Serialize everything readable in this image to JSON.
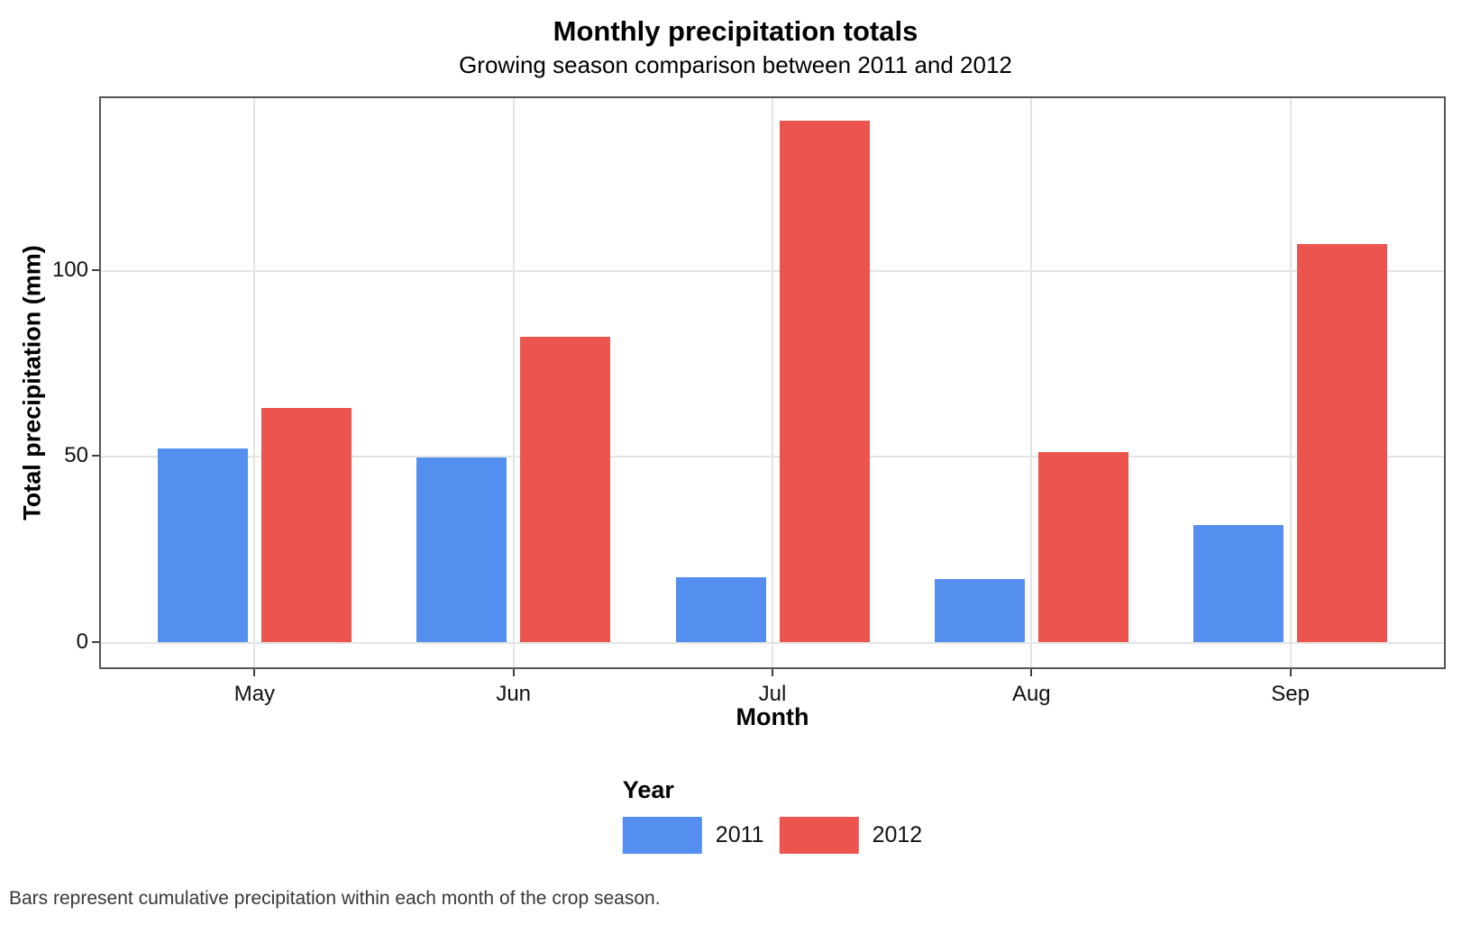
{
  "chart_data": {
    "type": "bar",
    "title": "Monthly precipitation totals",
    "subtitle": "Growing season comparison between 2011 and 2012",
    "categories": [
      "May",
      "Jun",
      "Jul",
      "Aug",
      "Sep"
    ],
    "series": [
      {
        "name": "2011",
        "color": "#548FF0",
        "values": [
          52,
          49.5,
          17.5,
          17,
          31.5
        ]
      },
      {
        "name": "2012",
        "color": "#EC554D",
        "values": [
          63,
          82,
          140,
          51,
          107
        ]
      }
    ],
    "xlabel": "Month",
    "ylabel": "Total precipitation (mm)",
    "legend_title": "Year",
    "legend_position": "bottom",
    "y_ticks": [
      0,
      50,
      100
    ],
    "ylim": [
      0,
      147
    ],
    "grid": true,
    "caption": "Bars represent cumulative precipitation within each month of the crop season.",
    "colors": {
      "bar_2011": "#548FF0",
      "bar_2012": "#EC554D",
      "panel_border": "#555555",
      "gridline": "#E4E4E4"
    }
  }
}
